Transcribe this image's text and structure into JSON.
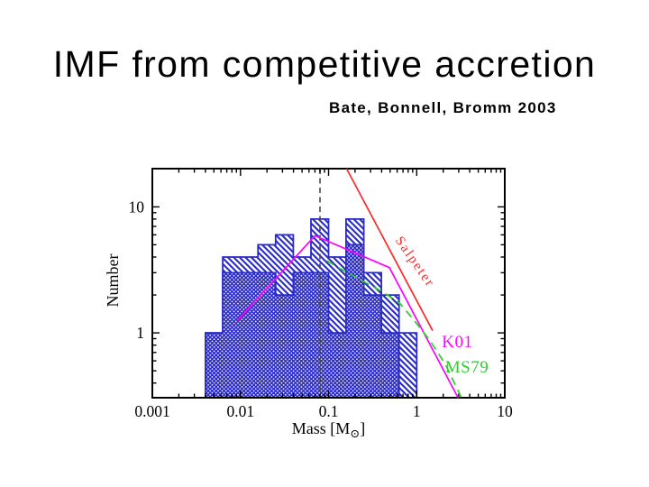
{
  "slide": {
    "title": "IMF from competitive accretion",
    "citation": "Bate, Bonnell, Bromm 2003"
  },
  "chart_data": {
    "type": "bar",
    "subtype": "log-log histogram with reference IMF curves",
    "title": "",
    "xlabel": "Mass [M⊙]",
    "xlabel_main": "Mass [M",
    "xlabel_sub": "⊙",
    "xlabel_close": "]",
    "ylabel": "Number",
    "x_scale": "log",
    "y_scale": "log",
    "x_range": [
      0.001,
      10
    ],
    "y_range": [
      0.306,
      20.1
    ],
    "grid": false,
    "x_major_ticks": [
      {
        "v": 0.001,
        "label": "0.001"
      },
      {
        "v": 0.01,
        "label": "0.01"
      },
      {
        "v": 0.1,
        "label": "0.1"
      },
      {
        "v": 1,
        "label": "1"
      },
      {
        "v": 10,
        "label": "10"
      }
    ],
    "y_major_ticks": [
      {
        "v": 1,
        "label": "1"
      },
      {
        "v": 10,
        "label": "10"
      }
    ],
    "histogram": {
      "color": "#2a2ac4",
      "bin_edges": [
        0.004,
        0.0063,
        0.01,
        0.0158,
        0.0251,
        0.0398,
        0.0631,
        0.1,
        0.158,
        0.251,
        0.398,
        0.631,
        1.0
      ],
      "total_counts": [
        1,
        4,
        4,
        5,
        6,
        4,
        8,
        4,
        8,
        3,
        2,
        1
      ],
      "crosshatch_counts": [
        1,
        3,
        3,
        3,
        2,
        3,
        3,
        1,
        5,
        2,
        1,
        0
      ]
    },
    "reference_lines": [
      {
        "name": "Salpeter",
        "color": "#f92a2a",
        "style": "solid",
        "points": [
          [
            0.16,
            20.1
          ],
          [
            1.52,
            1.04
          ]
        ],
        "label": {
          "text": "Salpeter",
          "at": [
            0.88,
            3.5
          ],
          "rotate": 55,
          "size": 15,
          "spacing": 2
        }
      },
      {
        "name": "K01",
        "color": "#ff00ff",
        "style": "solid",
        "points": [
          [
            0.0093,
            1.26
          ],
          [
            0.07,
            5.9
          ],
          [
            0.49,
            3.3
          ],
          [
            2.95,
            0.306
          ]
        ],
        "label": {
          "text": "K01",
          "at": [
            2.9,
            0.77
          ],
          "rotate": 0,
          "size": 19,
          "spacing": 0.5
        }
      },
      {
        "name": "MS79",
        "color": "#2bd12b",
        "style": "dashed",
        "points": [
          [
            0.095,
            3.75
          ],
          [
            0.13,
            3.3
          ],
          [
            0.18,
            2.9
          ],
          [
            0.28,
            2.45
          ],
          [
            0.42,
            2.1
          ],
          [
            0.65,
            1.7
          ],
          [
            0.91,
            1.29
          ],
          [
            1.4,
            0.88
          ],
          [
            2.1,
            0.57
          ],
          [
            3.2,
            0.31
          ]
        ],
        "label": {
          "text": "MS79",
          "at": [
            3.72,
            0.485
          ],
          "rotate": 0,
          "size": 19,
          "spacing": 0.5
        }
      }
    ],
    "annotations": [
      {
        "type": "vline",
        "name": "hydrogen-burning-limit",
        "v": 0.08,
        "color": "#4a4a4a",
        "style": "dashed"
      }
    ]
  }
}
